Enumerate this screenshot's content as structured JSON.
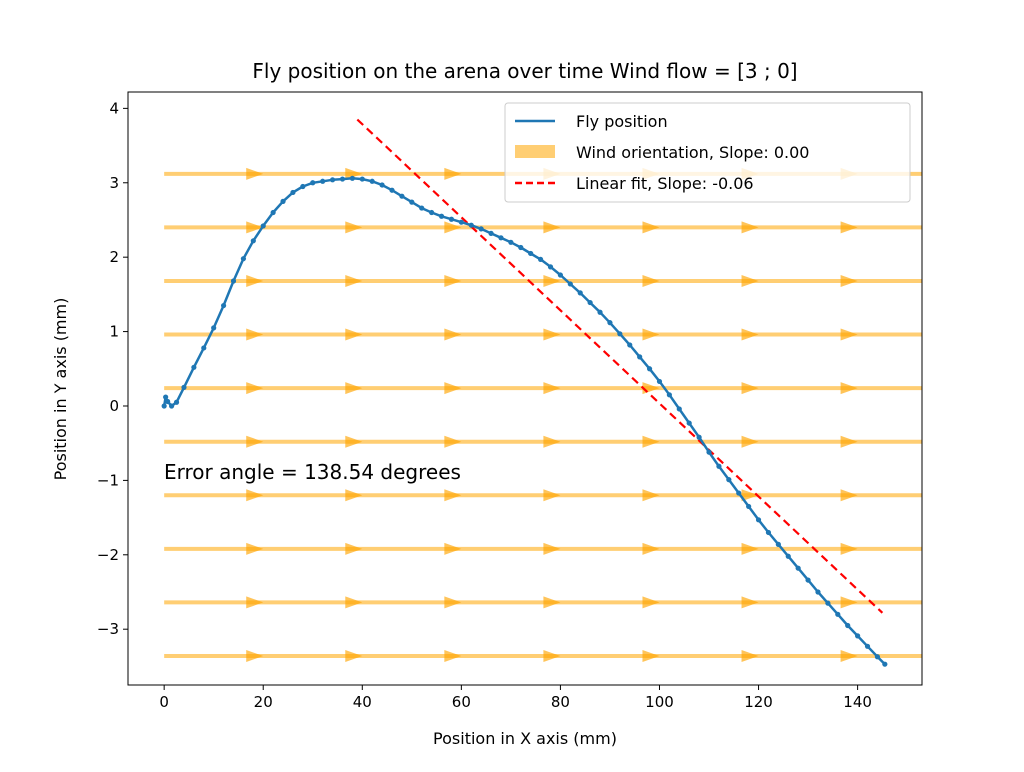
{
  "chart_data": {
    "type": "line",
    "title": "Fly position on the arena over time Wind flow = [3 ; 0]",
    "xlabel": "Position in X axis (mm)",
    "ylabel": "Position in Y axis (mm)",
    "xlim": [
      -7.3,
      153
    ],
    "ylim": [
      -3.75,
      4.22
    ],
    "xticks": [
      0,
      20,
      40,
      60,
      80,
      100,
      120,
      140
    ],
    "yticks": [
      -3,
      -2,
      -1,
      0,
      1,
      2,
      3,
      4
    ],
    "grid": false,
    "legend_position": "top-right",
    "annotation": "Error angle = 138.54 degrees",
    "series": [
      {
        "name": "Fly position",
        "color": "#1f77b4",
        "style": "solid-with-markers",
        "points": [
          [
            0,
            0.0
          ],
          [
            0.3,
            0.12
          ],
          [
            0.7,
            0.06
          ],
          [
            1.5,
            0.0
          ],
          [
            2.5,
            0.05
          ],
          [
            4,
            0.25
          ],
          [
            6,
            0.52
          ],
          [
            8,
            0.78
          ],
          [
            10,
            1.05
          ],
          [
            12,
            1.35
          ],
          [
            14,
            1.68
          ],
          [
            16,
            1.98
          ],
          [
            18,
            2.22
          ],
          [
            20,
            2.42
          ],
          [
            22,
            2.6
          ],
          [
            24,
            2.75
          ],
          [
            26,
            2.87
          ],
          [
            28,
            2.95
          ],
          [
            30,
            3.0
          ],
          [
            32,
            3.02
          ],
          [
            34,
            3.04
          ],
          [
            36,
            3.05
          ],
          [
            38,
            3.06
          ],
          [
            40,
            3.05
          ],
          [
            42,
            3.02
          ],
          [
            44,
            2.97
          ],
          [
            46,
            2.9
          ],
          [
            48,
            2.82
          ],
          [
            50,
            2.74
          ],
          [
            52,
            2.66
          ],
          [
            54,
            2.6
          ],
          [
            56,
            2.55
          ],
          [
            58,
            2.51
          ],
          [
            60,
            2.47
          ],
          [
            62,
            2.43
          ],
          [
            64,
            2.38
          ],
          [
            66,
            2.32
          ],
          [
            68,
            2.26
          ],
          [
            70,
            2.2
          ],
          [
            72,
            2.13
          ],
          [
            74,
            2.05
          ],
          [
            76,
            1.97
          ],
          [
            78,
            1.87
          ],
          [
            80,
            1.76
          ],
          [
            82,
            1.64
          ],
          [
            84,
            1.52
          ],
          [
            86,
            1.39
          ],
          [
            88,
            1.26
          ],
          [
            90,
            1.12
          ],
          [
            92,
            0.97
          ],
          [
            94,
            0.82
          ],
          [
            96,
            0.66
          ],
          [
            98,
            0.5
          ],
          [
            100,
            0.33
          ],
          [
            102,
            0.15
          ],
          [
            104,
            -0.04
          ],
          [
            106,
            -0.23
          ],
          [
            108,
            -0.42
          ],
          [
            110,
            -0.62
          ],
          [
            112,
            -0.81
          ],
          [
            114,
            -0.99
          ],
          [
            116,
            -1.17
          ],
          [
            118,
            -1.35
          ],
          [
            120,
            -1.53
          ],
          [
            122,
            -1.7
          ],
          [
            124,
            -1.86
          ],
          [
            126,
            -2.02
          ],
          [
            128,
            -2.18
          ],
          [
            130,
            -2.34
          ],
          [
            132,
            -2.5
          ],
          [
            134,
            -2.65
          ],
          [
            136,
            -2.8
          ],
          [
            138,
            -2.95
          ],
          [
            140,
            -3.09
          ],
          [
            142,
            -3.23
          ],
          [
            144,
            -3.37
          ],
          [
            145.5,
            -3.47
          ]
        ]
      },
      {
        "name": "Wind orientation, Slope: 0.00",
        "color": "#ffa500",
        "style": "arrow-field",
        "row_y": [
          -3.36,
          -2.64,
          -1.92,
          -1.2,
          -0.48,
          0.24,
          0.96,
          1.68,
          2.4,
          3.12
        ],
        "arrow_x": [
          20,
          40,
          60,
          80,
          100,
          120,
          140
        ]
      },
      {
        "name": "Linear fit, Slope: -0.06",
        "color": "#ff0000",
        "style": "dashed",
        "points": [
          [
            39,
            3.85
          ],
          [
            145,
            -2.78
          ]
        ]
      }
    ]
  }
}
